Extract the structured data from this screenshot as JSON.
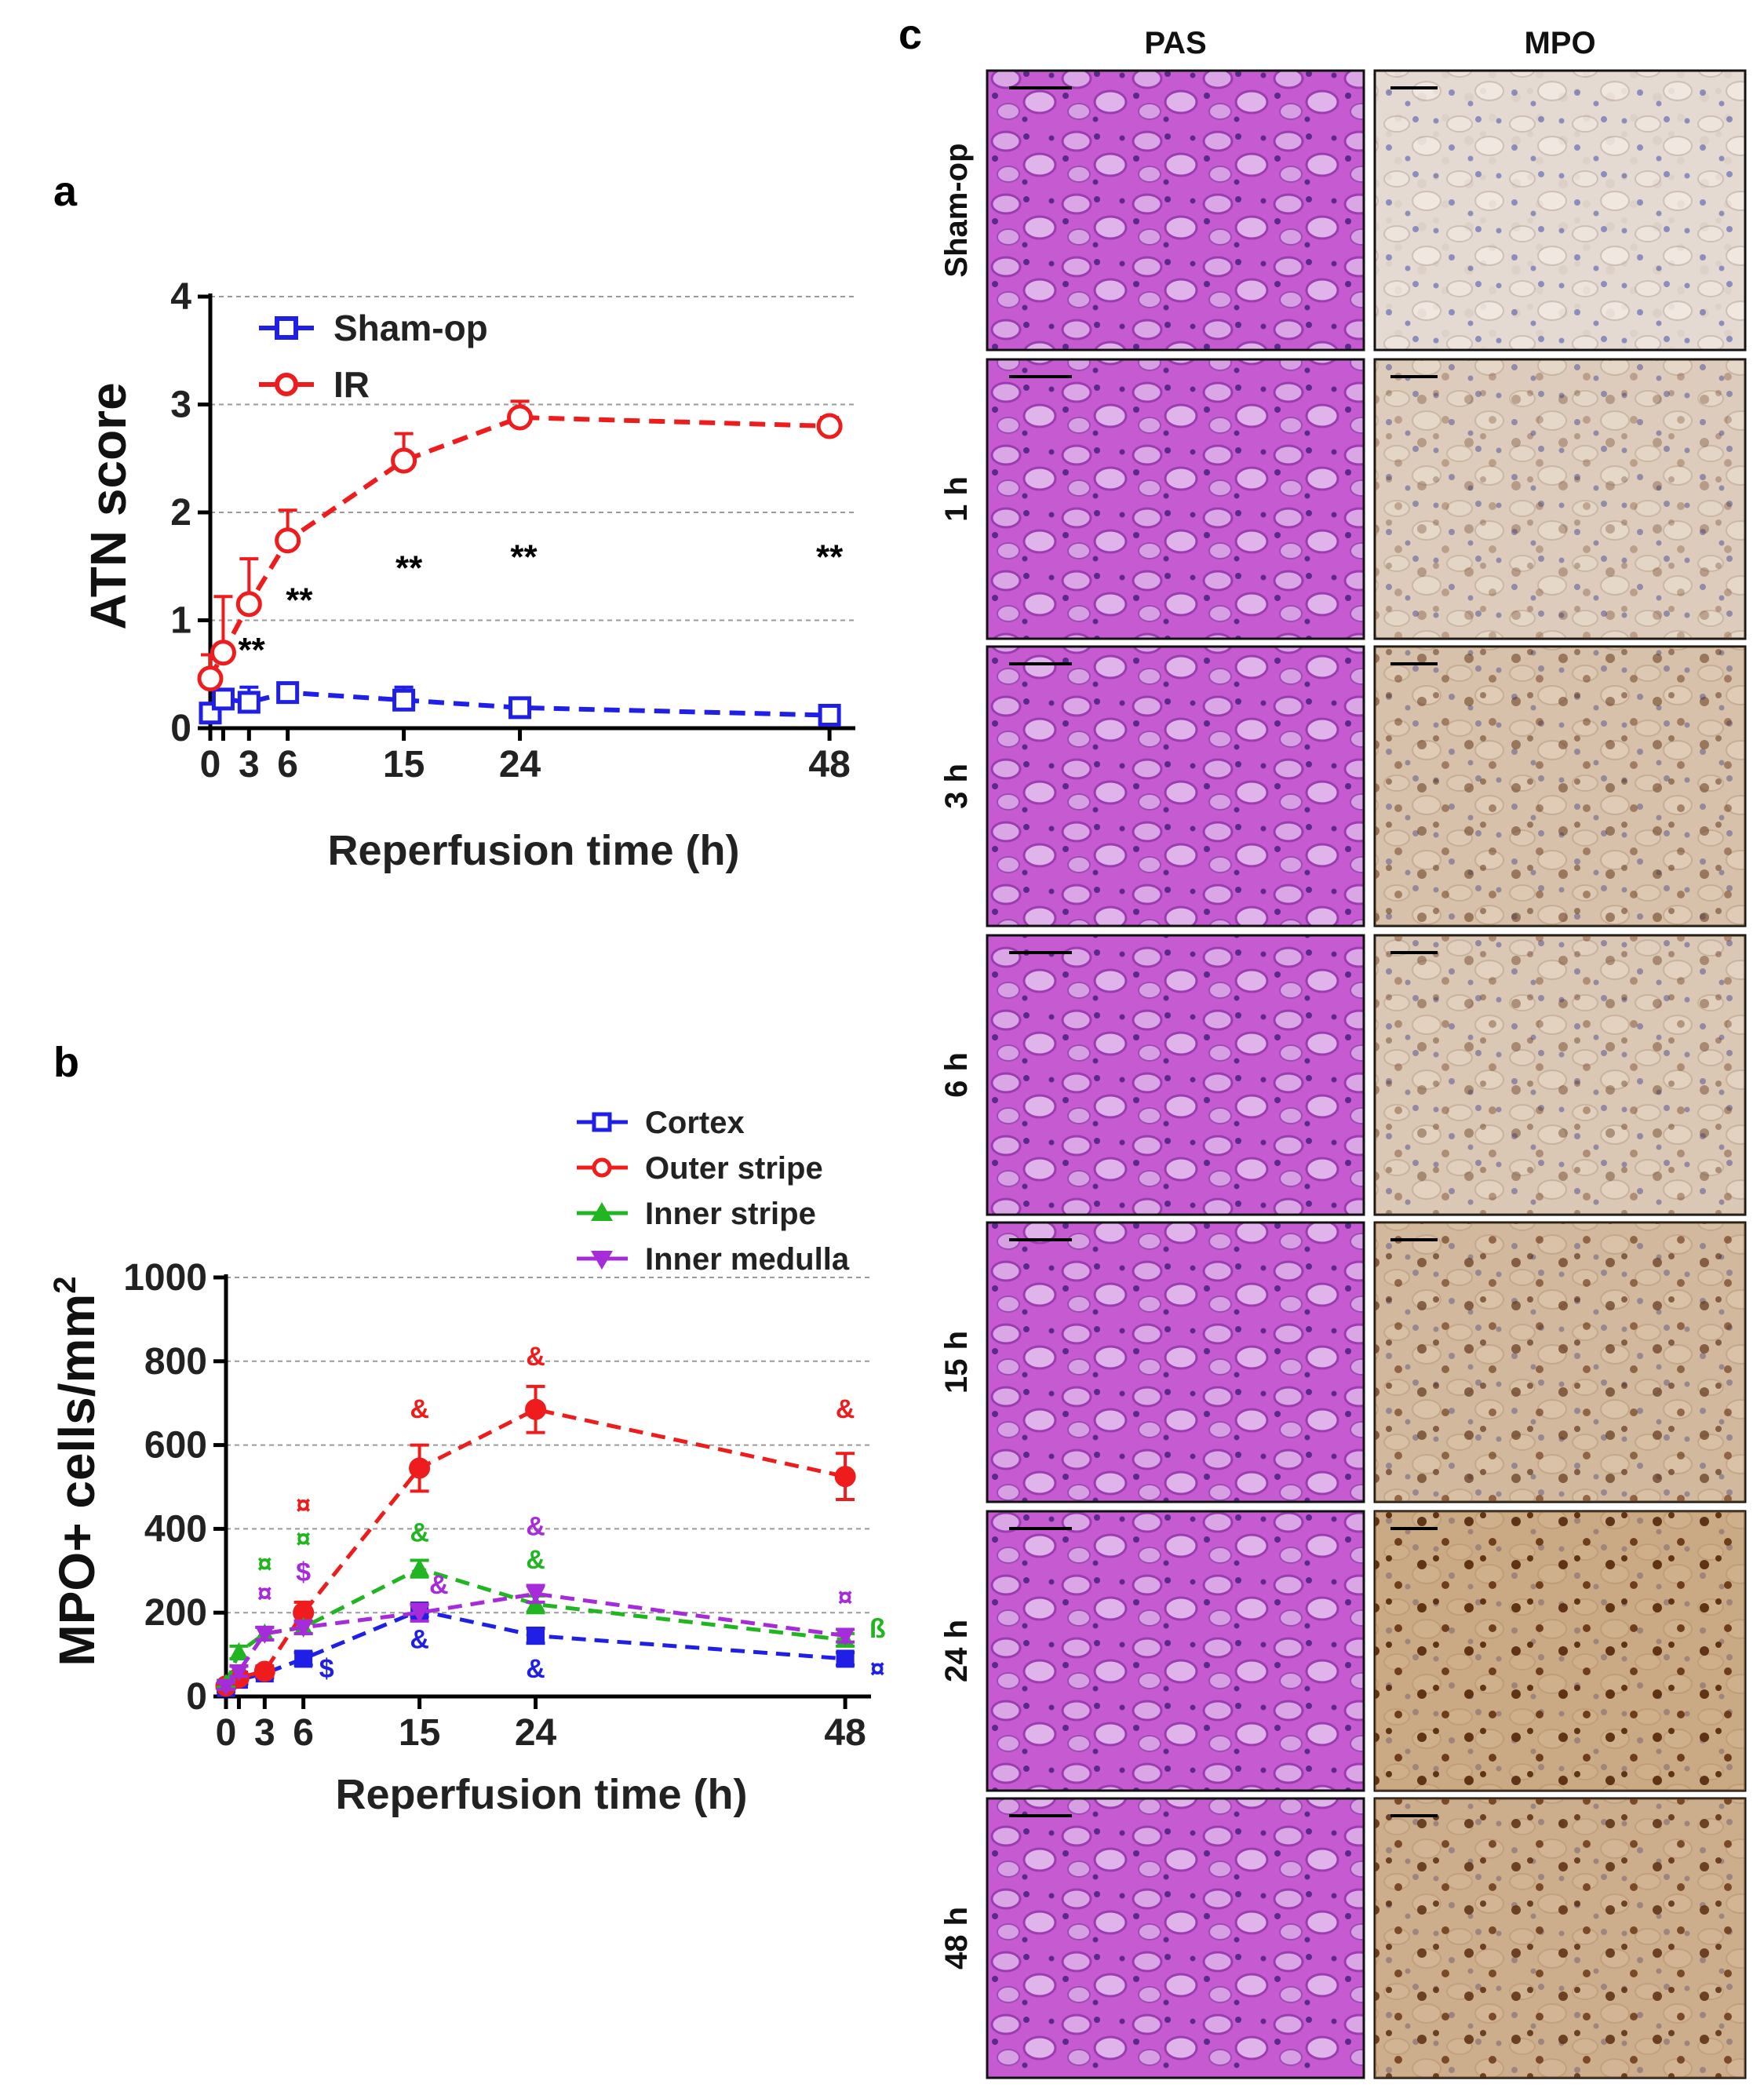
{
  "panel_labels": {
    "a": "a",
    "b": "b",
    "c": "c"
  },
  "colors": {
    "sham": "#1f1fe6",
    "ir": "#ee1c1c",
    "cortex": "#1f1fe6",
    "outer": "#ee1c1c",
    "inner": "#22b522",
    "medulla": "#a62cd9"
  },
  "chart_data": [
    {
      "type": "line",
      "title": "",
      "xlabel": "Reperfusion time (h)",
      "ylabel": "ATN score",
      "xlim": [
        0,
        50
      ],
      "ylim": [
        0,
        4
      ],
      "xticks": [
        0,
        3,
        6,
        15,
        24,
        48
      ],
      "xtick_labels": [
        "0",
        "3",
        "6",
        "15",
        "24",
        "48"
      ],
      "yticks": [
        0,
        1,
        2,
        3,
        4
      ],
      "ytick_labels": [
        "0",
        "1",
        "2",
        "3",
        "4"
      ],
      "grid": "horizontal-dashed",
      "legend": "top-left",
      "series": [
        {
          "name": "Sham-op",
          "color": "#1f1fe6",
          "marker": "square",
          "x": [
            0,
            1,
            3,
            6,
            15,
            24,
            48
          ],
          "y": [
            0.14,
            0.27,
            0.24,
            0.33,
            0.26,
            0.19,
            0.12
          ],
          "err": [
            0.05,
            0.06,
            0.14,
            0.05,
            0.12,
            0.05,
            0.04
          ]
        },
        {
          "name": "IR",
          "color": "#ee1c1c",
          "marker": "circle",
          "x": [
            0,
            1,
            3,
            6,
            15,
            24,
            48
          ],
          "y": [
            0.46,
            0.7,
            1.15,
            1.74,
            2.48,
            2.88,
            2.8
          ],
          "err": [
            0.22,
            0.52,
            0.42,
            0.28,
            0.25,
            0.15,
            0.08
          ]
        }
      ],
      "annotations": [
        {
          "text": "**",
          "x": 3.2,
          "y": 0.62
        },
        {
          "text": "**",
          "x": 6.9,
          "y": 1.08
        },
        {
          "text": "**",
          "x": 15.4,
          "y": 1.38
        },
        {
          "text": "**",
          "x": 24.3,
          "y": 1.48
        },
        {
          "text": "**",
          "x": 48.0,
          "y": 1.48
        }
      ]
    },
    {
      "type": "line",
      "title": "",
      "xlabel": "Reperfusion time (h)",
      "ylabel": "MPO+ cells/mm",
      "ylabel_sup": "2",
      "xlim": [
        0,
        50
      ],
      "ylim": [
        0,
        1000
      ],
      "xticks": [
        0,
        3,
        6,
        15,
        24,
        48
      ],
      "xtick_labels": [
        "0",
        "3",
        "6",
        "15",
        "24",
        "48"
      ],
      "yticks": [
        0,
        200,
        400,
        600,
        800,
        1000
      ],
      "ytick_labels": [
        "0",
        "200",
        "400",
        "600",
        "800",
        "1000"
      ],
      "grid": "horizontal-dashed",
      "legend": "top-right",
      "series": [
        {
          "name": "Cortex",
          "color": "#1f1fe6",
          "marker": "square",
          "x": [
            0,
            1,
            3,
            6,
            15,
            24,
            48
          ],
          "y": [
            20,
            40,
            55,
            90,
            205,
            145,
            90
          ],
          "err": [
            8,
            10,
            10,
            15,
            15,
            18,
            15
          ]
        },
        {
          "name": "Outer stripe",
          "color": "#ee1c1c",
          "marker": "circle",
          "x": [
            0,
            1,
            3,
            6,
            15,
            24,
            48
          ],
          "y": [
            25,
            45,
            60,
            200,
            545,
            685,
            525
          ],
          "err": [
            8,
            10,
            12,
            25,
            55,
            55,
            55
          ]
        },
        {
          "name": "Inner stripe",
          "color": "#22b522",
          "marker": "triangle-up",
          "x": [
            0,
            1,
            3,
            6,
            15,
            24,
            48
          ],
          "y": [
            30,
            105,
            150,
            165,
            305,
            220,
            135
          ],
          "err": [
            8,
            15,
            15,
            15,
            20,
            20,
            15
          ]
        },
        {
          "name": "Inner medulla",
          "color": "#a62cd9",
          "marker": "triangle-down",
          "x": [
            0,
            1,
            3,
            6,
            15,
            24,
            48
          ],
          "y": [
            25,
            60,
            150,
            165,
            200,
            245,
            145
          ],
          "err": [
            8,
            12,
            15,
            15,
            20,
            20,
            15
          ]
        }
      ],
      "annotations": [
        {
          "text": "¤",
          "x": 6.0,
          "y": 435,
          "color": "#ee1c1c"
        },
        {
          "text": "¤",
          "x": 6.0,
          "y": 355,
          "color": "#22b522"
        },
        {
          "text": "$",
          "x": 6.0,
          "y": 275,
          "color": "#a62cd9"
        },
        {
          "text": "¤",
          "x": 3.0,
          "y": 295,
          "color": "#22b522"
        },
        {
          "text": "¤",
          "x": 3.0,
          "y": 225,
          "color": "#a62cd9"
        },
        {
          "text": "$",
          "x": 7.8,
          "y": 45,
          "color": "#1f1fe6"
        },
        {
          "text": "&",
          "x": 15.0,
          "y": 665,
          "color": "#ee1c1c"
        },
        {
          "text": "&",
          "x": 15.0,
          "y": 370,
          "color": "#22b522"
        },
        {
          "text": "&",
          "x": 16.5,
          "y": 245,
          "color": "#a62cd9"
        },
        {
          "text": "&",
          "x": 15.0,
          "y": 115,
          "color": "#1f1fe6"
        },
        {
          "text": "&",
          "x": 24.0,
          "y": 790,
          "color": "#ee1c1c"
        },
        {
          "text": "&",
          "x": 24.0,
          "y": 385,
          "color": "#a62cd9"
        },
        {
          "text": "&",
          "x": 24.0,
          "y": 305,
          "color": "#22b522"
        },
        {
          "text": "&",
          "x": 24.0,
          "y": 45,
          "color": "#1f1fe6"
        },
        {
          "text": "&",
          "x": 48.0,
          "y": 665,
          "color": "#ee1c1c"
        },
        {
          "text": "¤",
          "x": 48.0,
          "y": 215,
          "color": "#a62cd9"
        },
        {
          "text": "ß",
          "x": 50.5,
          "y": 140,
          "color": "#22b522"
        },
        {
          "text": "¤",
          "x": 50.5,
          "y": 45,
          "color": "#1f1fe6"
        }
      ]
    }
  ],
  "micrographs": {
    "columns": [
      "PAS",
      "MPO"
    ],
    "rows": [
      "Sham-op",
      "1 h",
      "3 h",
      "6 h",
      "15 h",
      "24 h",
      "48 h"
    ],
    "mpo_intensity": [
      0.05,
      0.3,
      0.5,
      0.4,
      0.65,
      0.95,
      0.85
    ]
  }
}
